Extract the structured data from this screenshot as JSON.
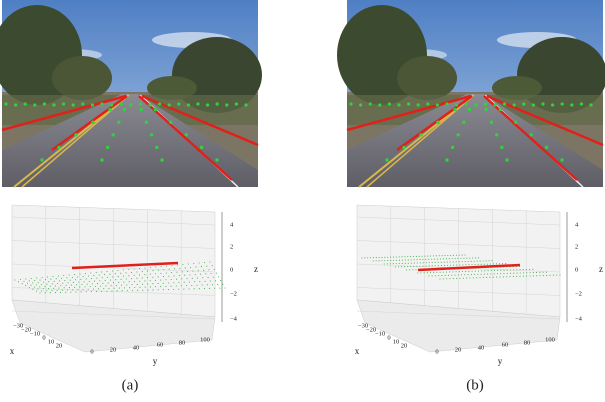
{
  "panels": [
    {
      "caption": "(a)",
      "plot": {
        "x_label": "x",
        "y_label": "y",
        "z_label": "z",
        "x_ticks": [
          "−30",
          "−20",
          "−10",
          "0",
          "10",
          "20"
        ],
        "y_ticks": [
          "0",
          "20",
          "40",
          "60",
          "80",
          "100"
        ],
        "z_ticks": [
          "4",
          "2",
          "0",
          "−2",
          "−4"
        ]
      }
    },
    {
      "caption": "(b)",
      "plot": {
        "x_label": "x",
        "y_label": "y",
        "z_label": "z",
        "x_ticks": [
          "−30",
          "−20",
          "−10",
          "0",
          "10",
          "20"
        ],
        "y_ticks": [
          "0",
          "20",
          "40",
          "60",
          "80",
          "100"
        ],
        "z_ticks": [
          "4",
          "2",
          "0",
          "−2",
          "−4"
        ]
      }
    }
  ]
}
